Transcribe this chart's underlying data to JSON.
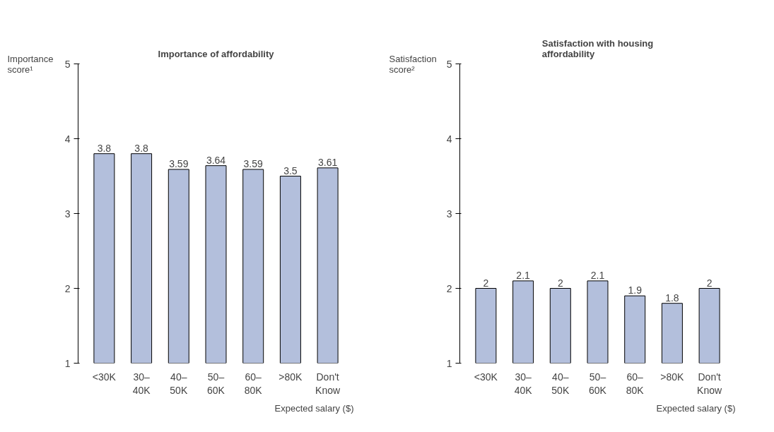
{
  "chart_data": [
    {
      "type": "bar",
      "title": "Importance of affordability",
      "ylabel": "Importance score¹",
      "xlabel": "Expected salary ($)",
      "categories": [
        "<30K",
        "30–40K",
        "40–50K",
        "50–60K",
        "60–80K",
        ">80K",
        "Don't Know"
      ],
      "values": [
        3.8,
        3.8,
        3.59,
        3.64,
        3.59,
        3.5,
        3.61
      ],
      "color": "#b3bfdc",
      "ylim": [
        1,
        5
      ],
      "yticks": [
        1,
        2,
        3,
        4,
        5
      ],
      "grid": false,
      "data_labels": true
    },
    {
      "type": "bar",
      "title": "Satisfaction with housing affordability",
      "ylabel": "Satisfaction score²",
      "xlabel": "Expected salary ($)",
      "categories": [
        "<30K",
        "30–40K",
        "40–50K",
        "50–60K",
        "60–80K",
        ">80K",
        "Don't Know"
      ],
      "values": [
        2,
        2.1,
        2,
        2.1,
        1.9,
        1.8,
        2
      ],
      "color": "#b3bfdc",
      "ylim": [
        1,
        5
      ],
      "yticks": [
        1,
        2,
        3,
        4,
        5
      ],
      "grid": false,
      "data_labels": true
    }
  ]
}
